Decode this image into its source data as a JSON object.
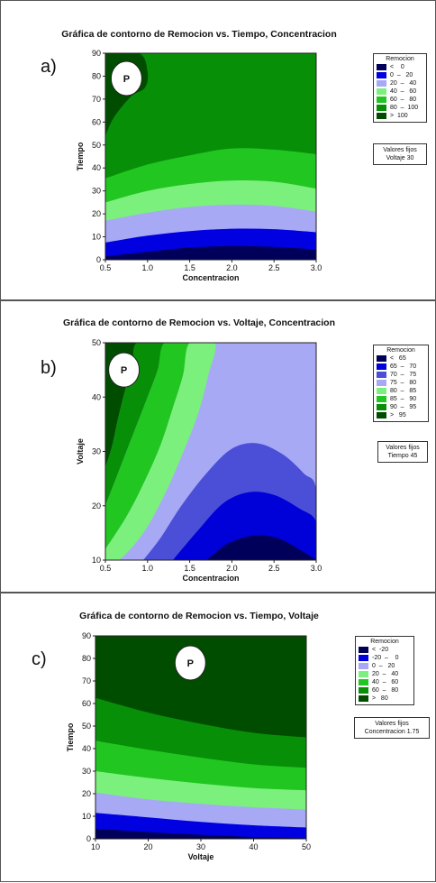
{
  "chart_data": [
    {
      "type": "heatmap",
      "panel_label": "a)",
      "title": "Gráfica de contorno de Remocion vs. Tiempo, Concentracion",
      "xlabel": "Concentracion",
      "ylabel": "Tiempo",
      "xlim": [
        0.5,
        3.0
      ],
      "ylim": [
        0,
        90
      ],
      "x_ticks": [
        "0.5",
        "1.0",
        "1.5",
        "2.0",
        "2.5",
        "3.0"
      ],
      "y_ticks": [
        "0",
        "10",
        "20",
        "30",
        "40",
        "50",
        "60",
        "70",
        "80",
        "90"
      ],
      "legend_title": "Remocion",
      "legend_entries": [
        "<    0",
        "0  –   20",
        "20  –   40",
        "40  –   60",
        "60  –   80",
        "80  –  100",
        ">  100"
      ],
      "levels": [
        0,
        20,
        40,
        60,
        80,
        100
      ],
      "colors": [
        "#00005a",
        "#0000e0",
        "#a7a9f5",
        "#7cf07c",
        "#21c621",
        "#088f08",
        "#004d00"
      ],
      "fixed_values": {
        "label": "Valores fijos",
        "text": "Voltaje   30"
      },
      "marker": "P",
      "marker_position": [
        0.75,
        79
      ],
      "boundaries": [
        {
          "between": "<0 | 0-20",
          "points": [
            [
              0.5,
              1.5
            ],
            [
              1.0,
              3.5
            ],
            [
              1.5,
              5.3
            ],
            [
              2.0,
              6.0
            ],
            [
              2.5,
              5.6
            ],
            [
              3.0,
              4.5
            ]
          ]
        },
        {
          "between": "0-20 | 20-40",
          "points": [
            [
              0.5,
              7.5
            ],
            [
              1.0,
              10.5
            ],
            [
              1.5,
              12.5
            ],
            [
              2.0,
              13.5
            ],
            [
              2.5,
              13.3
            ],
            [
              3.0,
              12.0
            ]
          ]
        },
        {
          "between": "20-40 | 40-60",
          "points": [
            [
              0.5,
              17.0
            ],
            [
              1.0,
              20.5
            ],
            [
              1.5,
              23.0
            ],
            [
              2.0,
              24.0
            ],
            [
              2.5,
              23.5
            ],
            [
              3.0,
              21.0
            ]
          ]
        },
        {
          "between": "40-60 | 60-80",
          "points": [
            [
              0.5,
              25.0
            ],
            [
              1.0,
              30.0
            ],
            [
              1.5,
              33.0
            ],
            [
              2.0,
              34.5
            ],
            [
              2.5,
              34.0
            ],
            [
              3.0,
              31.0
            ]
          ]
        },
        {
          "between": "60-80 | 80-100",
          "points": [
            [
              0.5,
              35.5
            ],
            [
              1.0,
              41.5
            ],
            [
              1.5,
              45.5
            ],
            [
              2.0,
              48.5
            ],
            [
              2.5,
              48.0
            ],
            [
              3.0,
              46.0
            ]
          ]
        }
      ],
      "regions": [
        {
          "label": "> 100",
          "outline": [
            [
              0.5,
              54
            ],
            [
              0.6,
              62
            ],
            [
              0.8,
              71
            ],
            [
              0.97,
              75
            ],
            [
              1.0,
              82
            ],
            [
              0.9,
              90
            ],
            [
              0.5,
              90
            ]
          ]
        }
      ]
    },
    {
      "type": "heatmap",
      "panel_label": "b)",
      "title": "Gráfica de contorno de Remocion vs. Voltaje, Concentracion",
      "xlabel": "Concentracion",
      "ylabel": "Voltaje",
      "xlim": [
        0.5,
        3.0
      ],
      "ylim": [
        10,
        50
      ],
      "x_ticks": [
        "0.5",
        "1.0",
        "1.5",
        "2.0",
        "2.5",
        "3.0"
      ],
      "y_ticks": [
        "10",
        "20",
        "30",
        "40",
        "50"
      ],
      "legend_title": "Remocion",
      "legend_entries": [
        "<   65",
        "65  –   70",
        "70  –   75",
        "75  –   80",
        "80  –   85",
        "85  –   90",
        "90  –   95",
        ">   95"
      ],
      "levels": [
        65,
        70,
        75,
        80,
        85,
        90,
        95
      ],
      "colors": [
        "#00005a",
        "#0000d8",
        "#4b4fd8",
        "#a7a9f5",
        "#7cf07c",
        "#21c621",
        "#088f08",
        "#004d00"
      ],
      "fixed_values": {
        "label": "Valores fijos",
        "text": "Tiempo   45"
      },
      "marker": "P",
      "marker_position": [
        0.72,
        45
      ],
      "regions": [
        {
          "label": "> 95",
          "outline": [
            [
              0.5,
              27
            ],
            [
              0.58,
              31
            ],
            [
              0.65,
              36
            ],
            [
              0.73,
              41
            ],
            [
              0.82,
              45.5
            ],
            [
              0.87,
              50
            ],
            [
              0.5,
              50
            ]
          ]
        },
        {
          "label": "90-95",
          "outline": [
            [
              0.5,
              20
            ],
            [
              0.65,
              26
            ],
            [
              0.85,
              34
            ],
            [
              1.0,
              40
            ],
            [
              1.12,
              45
            ],
            [
              1.2,
              50
            ],
            [
              0.87,
              50
            ],
            [
              0.82,
              45.5
            ],
            [
              0.73,
              41
            ],
            [
              0.65,
              36
            ],
            [
              0.58,
              31
            ],
            [
              0.5,
              27
            ]
          ]
        },
        {
          "label": "85-90",
          "outline": [
            [
              0.5,
              12
            ],
            [
              0.75,
              18
            ],
            [
              0.95,
              24
            ],
            [
              1.15,
              31
            ],
            [
              1.3,
              38
            ],
            [
              1.42,
              44
            ],
            [
              1.5,
              50
            ],
            [
              1.2,
              50
            ],
            [
              1.12,
              45
            ],
            [
              1.0,
              40
            ],
            [
              0.85,
              34
            ],
            [
              0.65,
              26
            ],
            [
              0.5,
              20
            ]
          ]
        },
        {
          "label": "80-85",
          "outline": [
            [
              0.5,
              10
            ],
            [
              0.66,
              10
            ],
            [
              0.95,
              15
            ],
            [
              1.2,
              22
            ],
            [
              1.4,
              29
            ],
            [
              1.6,
              37
            ],
            [
              1.72,
              44
            ],
            [
              1.8,
              50
            ],
            [
              1.5,
              50
            ],
            [
              1.42,
              44
            ],
            [
              1.3,
              38
            ],
            [
              1.15,
              31
            ],
            [
              0.95,
              24
            ],
            [
              0.75,
              18
            ],
            [
              0.5,
              12
            ]
          ]
        },
        {
          "label": "75-80",
          "outline": [
            [
              2.95,
              50
            ],
            [
              2.91,
              45
            ],
            [
              3.0,
              41
            ],
            [
              3.0,
              50
            ]
          ]
        },
        {
          "label": "70-75",
          "outline": [
            [
              0.95,
              10
            ],
            [
              1.15,
              14
            ],
            [
              1.4,
              20
            ],
            [
              1.7,
              26
            ],
            [
              2.0,
              30.5
            ],
            [
              2.3,
              31.5
            ],
            [
              2.6,
              29.5
            ],
            [
              2.85,
              26
            ],
            [
              3.0,
              23
            ],
            [
              3.0,
              10
            ]
          ]
        },
        {
          "label": "65-70",
          "outline": [
            [
              1.3,
              10
            ],
            [
              1.6,
              15.5
            ],
            [
              1.9,
              20.5
            ],
            [
              2.2,
              22.5
            ],
            [
              2.5,
              22
            ],
            [
              2.8,
              19.5
            ],
            [
              3.0,
              17
            ],
            [
              3.0,
              10
            ]
          ]
        },
        {
          "label": "< 65",
          "outline": [
            [
              1.7,
              10
            ],
            [
              1.95,
              13
            ],
            [
              2.25,
              14.5
            ],
            [
              2.55,
              14
            ],
            [
              2.85,
              11.5
            ],
            [
              3.0,
              10
            ]
          ]
        }
      ]
    },
    {
      "type": "heatmap",
      "panel_label": "c)",
      "title": "Gráfica de contorno de Remocion vs. Tiempo, Voltaje",
      "xlabel": "Voltaje",
      "ylabel": "Tiempo",
      "xlim": [
        10,
        50
      ],
      "ylim": [
        0,
        90
      ],
      "x_ticks": [
        "10",
        "20",
        "30",
        "40",
        "50"
      ],
      "y_ticks": [
        "0",
        "10",
        "20",
        "30",
        "40",
        "50",
        "60",
        "70",
        "80",
        "90"
      ],
      "legend_title": "Remocion",
      "legend_entries": [
        "<  -20",
        "-20  –    0",
        "0  –   20",
        "20  –   40",
        "40  –   60",
        "60  –   80",
        ">   80"
      ],
      "levels": [
        -20,
        0,
        20,
        40,
        60,
        80
      ],
      "colors": [
        "#00005a",
        "#0000e0",
        "#a7a9f5",
        "#7cf07c",
        "#21c621",
        "#088f08",
        "#004d00"
      ],
      "fixed_values": {
        "label": "Valores fijos",
        "text": "Concentracion   1.75"
      },
      "marker": "P",
      "marker_position": [
        28,
        78
      ],
      "boundaries": [
        {
          "between": "<-20 | -20-0",
          "points": [
            [
              10,
              4.5
            ],
            [
              20,
              3.0
            ],
            [
              30,
              1.8
            ],
            [
              40,
              0.8
            ],
            [
              50,
              0.2
            ]
          ]
        },
        {
          "between": "-20-0 | 0-20",
          "points": [
            [
              10,
              11.5
            ],
            [
              20,
              9.5
            ],
            [
              30,
              7.5
            ],
            [
              40,
              6.0
            ],
            [
              50,
              5.0
            ]
          ]
        },
        {
          "between": "0-20 | 20-40",
          "points": [
            [
              10,
              20.5
            ],
            [
              20,
              17.5
            ],
            [
              30,
              15.5
            ],
            [
              40,
              14.0
            ],
            [
              50,
              13.0
            ]
          ]
        },
        {
          "between": "20-40 | 40-60",
          "points": [
            [
              10,
              30.0
            ],
            [
              20,
              27.0
            ],
            [
              30,
              24.5
            ],
            [
              40,
              22.5
            ],
            [
              50,
              21.5
            ]
          ]
        },
        {
          "between": "40-60 | 60-80",
          "points": [
            [
              10,
              43.5
            ],
            [
              20,
              39.5
            ],
            [
              30,
              36.0
            ],
            [
              40,
              33.0
            ],
            [
              50,
              31.5
            ]
          ]
        },
        {
          "between": "60-80 | >80",
          "points": [
            [
              10,
              62.5
            ],
            [
              20,
              56.0
            ],
            [
              30,
              51.0
            ],
            [
              40,
              47.0
            ],
            [
              50,
              45.0
            ]
          ]
        }
      ]
    }
  ]
}
